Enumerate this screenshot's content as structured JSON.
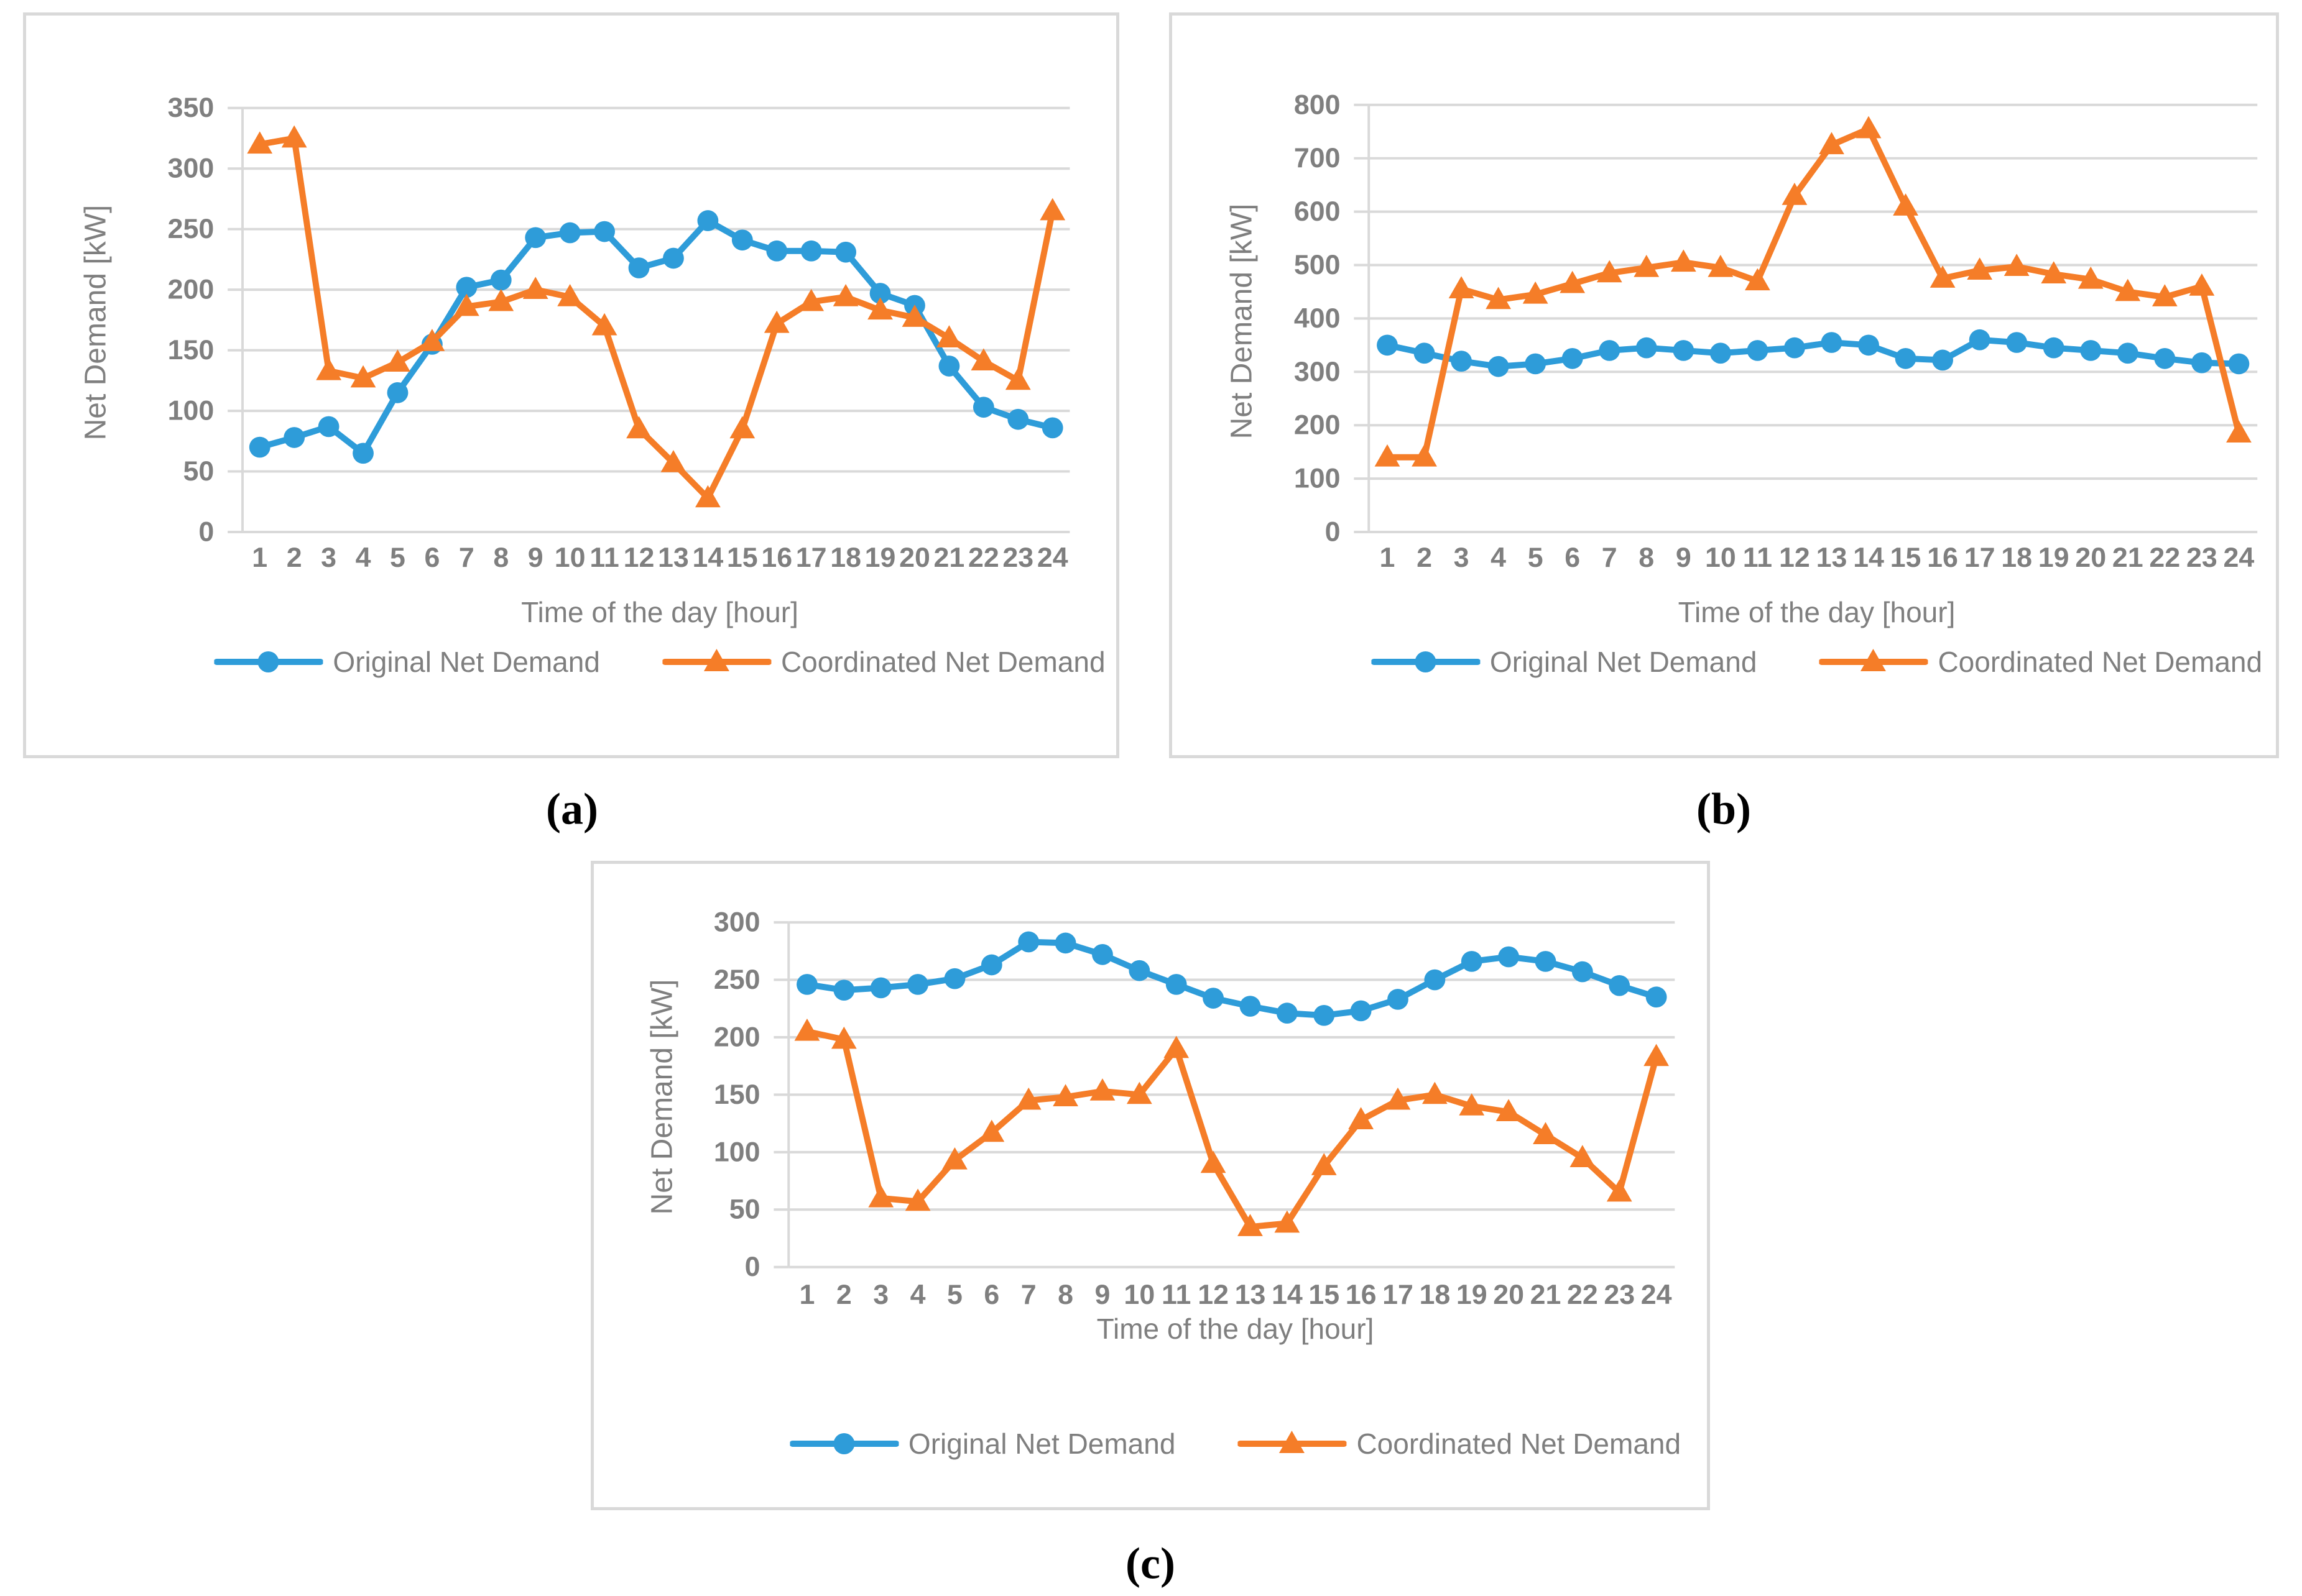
{
  "colors": {
    "original_series": "#2E9CD9",
    "coordinated_series": "#F57D28",
    "gridline": "#D9D9D9",
    "panel_border": "#D9D9D9",
    "axis_text": "#7F7F7F",
    "caption_text": "#000000"
  },
  "chart_data": [
    {
      "type": "line",
      "caption": "(a)",
      "xlabel": "Time of the day [hour]",
      "ylabel": "Net Demand [kW]",
      "categories": [
        "1",
        "2",
        "3",
        "4",
        "5",
        "6",
        "7",
        "8",
        "9",
        "10",
        "11",
        "12",
        "13",
        "14",
        "15",
        "16",
        "17",
        "18",
        "19",
        "20",
        "21",
        "22",
        "23",
        "24"
      ],
      "ylim": [
        0,
        350
      ],
      "ytick_step": 50,
      "grid": true,
      "legend_position": "bottom",
      "series": [
        {
          "name": "Original Net Demand",
          "marker": "circle",
          "color": "#2E9CD9",
          "values": [
            70,
            78,
            87,
            65,
            115,
            155,
            202,
            208,
            243,
            247,
            248,
            218,
            226,
            257,
            241,
            232,
            232,
            231,
            197,
            187,
            137,
            103,
            93,
            86
          ]
        },
        {
          "name": "Coordinated Net Demand",
          "marker": "triangle",
          "color": "#F57D28",
          "values": [
            320,
            325,
            133,
            127,
            140,
            157,
            186,
            190,
            200,
            194,
            170,
            85,
            57,
            28,
            85,
            172,
            190,
            194,
            183,
            177,
            160,
            141,
            125,
            265
          ]
        }
      ]
    },
    {
      "type": "line",
      "caption": "(b)",
      "xlabel": "Time of the day [hour]",
      "ylabel": "Net Demand [kW]",
      "categories": [
        "1",
        "2",
        "3",
        "4",
        "5",
        "6",
        "7",
        "8",
        "9",
        "10",
        "11",
        "12",
        "13",
        "14",
        "15",
        "16",
        "17",
        "18",
        "19",
        "20",
        "21",
        "22",
        "23",
        "24"
      ],
      "ylim": [
        0,
        800
      ],
      "ytick_step": 100,
      "grid": true,
      "legend_position": "bottom",
      "series": [
        {
          "name": "Original Net Demand",
          "marker": "circle",
          "color": "#2E9CD9",
          "values": [
            350,
            335,
            320,
            310,
            315,
            325,
            340,
            345,
            340,
            335,
            340,
            345,
            355,
            350,
            325,
            322,
            360,
            355,
            345,
            340,
            335,
            325,
            317,
            315
          ]
        },
        {
          "name": "Coordinated Net Demand",
          "marker": "triangle",
          "color": "#F57D28",
          "values": [
            140,
            140,
            455,
            435,
            445,
            465,
            485,
            495,
            505,
            495,
            470,
            630,
            725,
            755,
            610,
            475,
            490,
            497,
            483,
            473,
            450,
            440,
            460,
            185
          ]
        }
      ]
    },
    {
      "type": "line",
      "caption": "(c)",
      "xlabel": "Time of the day [hour]",
      "ylabel": "Net Demand [kW]",
      "categories": [
        "1",
        "2",
        "3",
        "4",
        "5",
        "6",
        "7",
        "8",
        "9",
        "10",
        "11",
        "12",
        "13",
        "14",
        "15",
        "16",
        "17",
        "18",
        "19",
        "20",
        "21",
        "22",
        "23",
        "24"
      ],
      "ylim": [
        0,
        300
      ],
      "ytick_step": 50,
      "grid": true,
      "legend_position": "bottom",
      "series": [
        {
          "name": "Original Net Demand",
          "marker": "circle",
          "color": "#2E9CD9",
          "values": [
            246,
            241,
            243,
            246,
            251,
            263,
            283,
            282,
            272,
            258,
            246,
            234,
            227,
            221,
            219,
            223,
            233,
            250,
            266,
            270,
            266,
            257,
            245,
            235
          ]
        },
        {
          "name": "Coordinated Net Demand",
          "marker": "triangle",
          "color": "#F57D28",
          "values": [
            205,
            198,
            60,
            57,
            93,
            117,
            145,
            148,
            153,
            150,
            190,
            90,
            35,
            38,
            88,
            128,
            145,
            150,
            140,
            135,
            115,
            95,
            65,
            183
          ]
        }
      ]
    }
  ]
}
